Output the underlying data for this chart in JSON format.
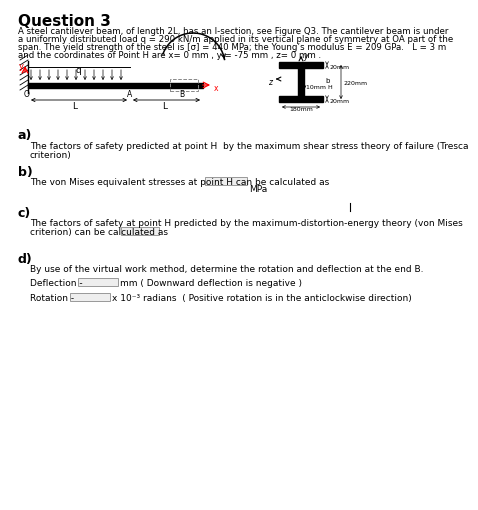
{
  "title": "Question 3",
  "para1": "A steel cantilever beam, of length 2L, has an I-section, see Figure Q3. The cantilever beam is under",
  "para2": "a uniformly distributed load q = 290 kN/m applied in its vertical plane of symmetry at OA part of the",
  "para3": "span. The yield strength of the steel is [σ] = 440 MPa; the Young’s modulus E = 209 GPa.   L = 3 m",
  "para4": "and the coordinates of Point H are x= 0 mm , y = -75 mm , z= 0 mm .",
  "sec_a": "a)",
  "sec_a1": "The factors of safety predicted at point H  by the maximum shear stress theory of failure (Tresca",
  "sec_a2": "criterion)",
  "sec_b": "b)",
  "sec_b1": "The von Mises equivalent stresses at point H can be calculated as",
  "sec_b_unit": "MPa",
  "sec_c": "c)",
  "sec_c1": "The factors of safety at point H predicted by the maximum-distortion-energy theory (von Mises",
  "sec_c2": "criterion) can be calculated as",
  "sec_d": "d)",
  "sec_d1": "By use of the virtual work method, determine the rotation and deflection at the end B.",
  "defl_label": "Deflection -",
  "defl_unit": "mm ( Downward deflection is negative )",
  "rot_label": "Rotation -",
  "rot_unit": "x 10⁻³ radians  ( Positive rotation is in the anticlockwise direction)",
  "bg": "#ffffff"
}
